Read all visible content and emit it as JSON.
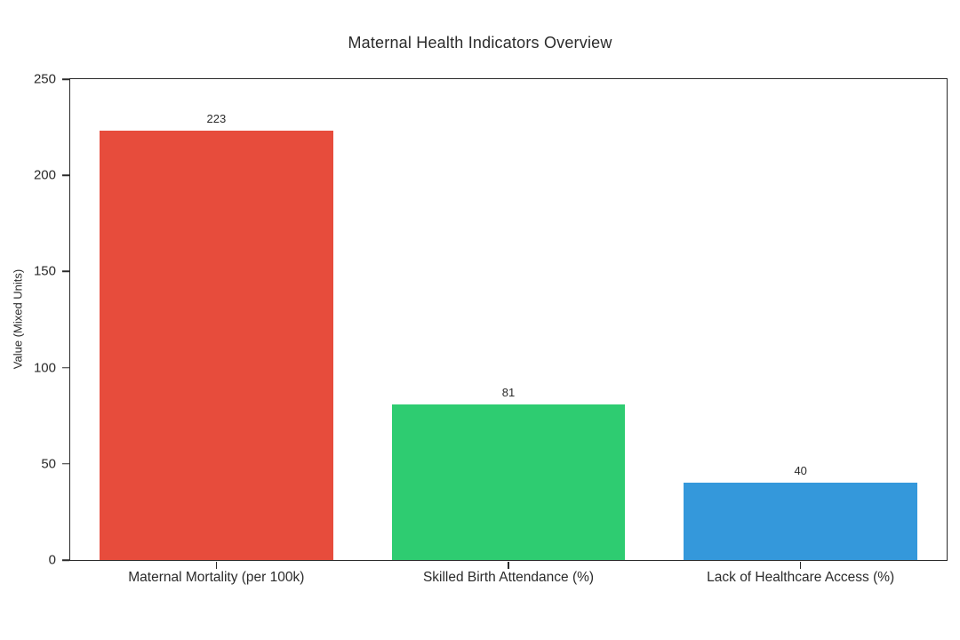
{
  "title": "Maternal Health Indicators Overview",
  "chart_data": {
    "type": "bar",
    "title": "Maternal Health Indicators Overview",
    "xlabel": "",
    "ylabel": "Value (Mixed Units)",
    "categories": [
      "Maternal Mortality (per 100k)",
      "Skilled Birth Attendance (%)",
      "Lack of Healthcare Access (%)"
    ],
    "values": [
      223,
      81,
      40
    ],
    "value_labels": [
      "223",
      "81",
      "40"
    ],
    "bar_colors": [
      "#e74c3c",
      "#2ecc71",
      "#3498db"
    ],
    "ylim": [
      0,
      250
    ],
    "yticks": [
      0,
      50,
      100,
      150,
      200,
      250
    ],
    "grid": false,
    "legend": "none",
    "background_color": "#ffffff",
    "axis_color": "#2a2a2a",
    "text_color": "#2b2b2b",
    "bar_width_fraction": 0.8
  }
}
